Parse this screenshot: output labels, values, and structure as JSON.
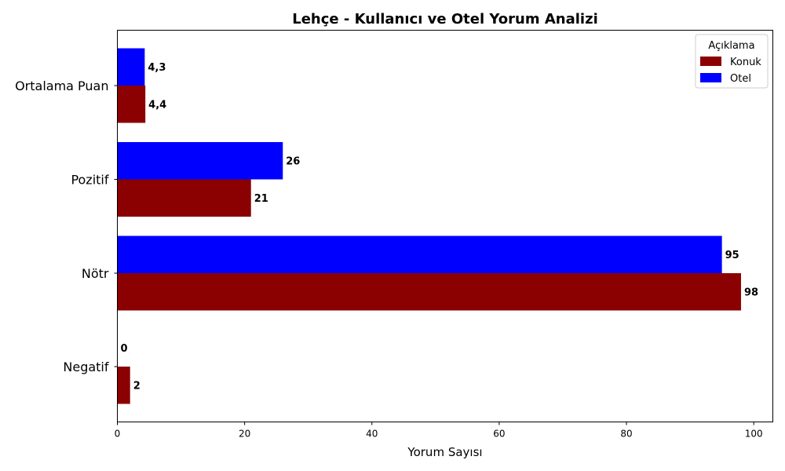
{
  "chart_data": {
    "type": "bar",
    "orientation": "horizontal",
    "title": "Lehçe - Kullanıcı ve Otel Yorum Analizi",
    "xlabel": "Yorum Sayısı",
    "ylabel": "",
    "xlim": [
      0,
      103
    ],
    "xticks": [
      0,
      20,
      40,
      60,
      80,
      100
    ],
    "grid": false,
    "categories": [
      "Ortalama Puan",
      "Pozitif",
      "Nötr",
      "Negatif"
    ],
    "series": [
      {
        "name": "Konuk",
        "color": "#8b0000",
        "values": [
          4.4,
          21,
          98,
          2
        ],
        "labels": [
          "4,4",
          "21",
          "98",
          "2"
        ]
      },
      {
        "name": "Otel",
        "color": "#0000ff",
        "values": [
          4.3,
          26,
          95,
          0
        ],
        "labels": [
          "4,3",
          "26",
          "95",
          "0"
        ]
      }
    ],
    "legend": {
      "title": "Açıklama",
      "placement": "top-right"
    }
  }
}
